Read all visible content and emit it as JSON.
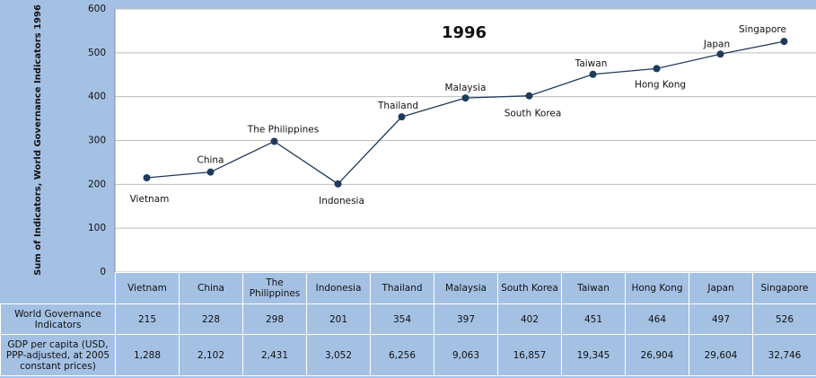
{
  "chart_data": {
    "type": "line",
    "title": "1996",
    "y_label": "Sum of Indicators, World Governance Indicators 1996",
    "categories": [
      "Vietnam",
      "China",
      "The Philippines",
      "Indonesia",
      "Thailand",
      "Malaysia",
      "South Korea",
      "Taiwan",
      "Hong Kong",
      "Japan",
      "Singapore"
    ],
    "series": [
      {
        "name": "World Governance Indicators",
        "color": "#1f3a5a",
        "values": [
          215,
          228,
          298,
          201,
          354,
          397,
          402,
          451,
          464,
          497,
          526
        ]
      }
    ],
    "gdp": {
      "name": "GDP per capita (USD, PPP-adjusted, at 2005 constant prices)",
      "values": [
        1288,
        2102,
        2431,
        3052,
        6256,
        9063,
        16857,
        19345,
        26904,
        29604,
        32746
      ],
      "value_labels": [
        "1,288",
        "2,102",
        "2,431",
        "3,052",
        "6,256",
        "9,063",
        "16,857",
        "19,345",
        "26,904",
        "29,604",
        "32,746"
      ]
    },
    "ylim": [
      0,
      600
    ],
    "yticks": [
      0,
      100,
      200,
      300,
      400,
      500,
      600
    ],
    "grid": true
  }
}
